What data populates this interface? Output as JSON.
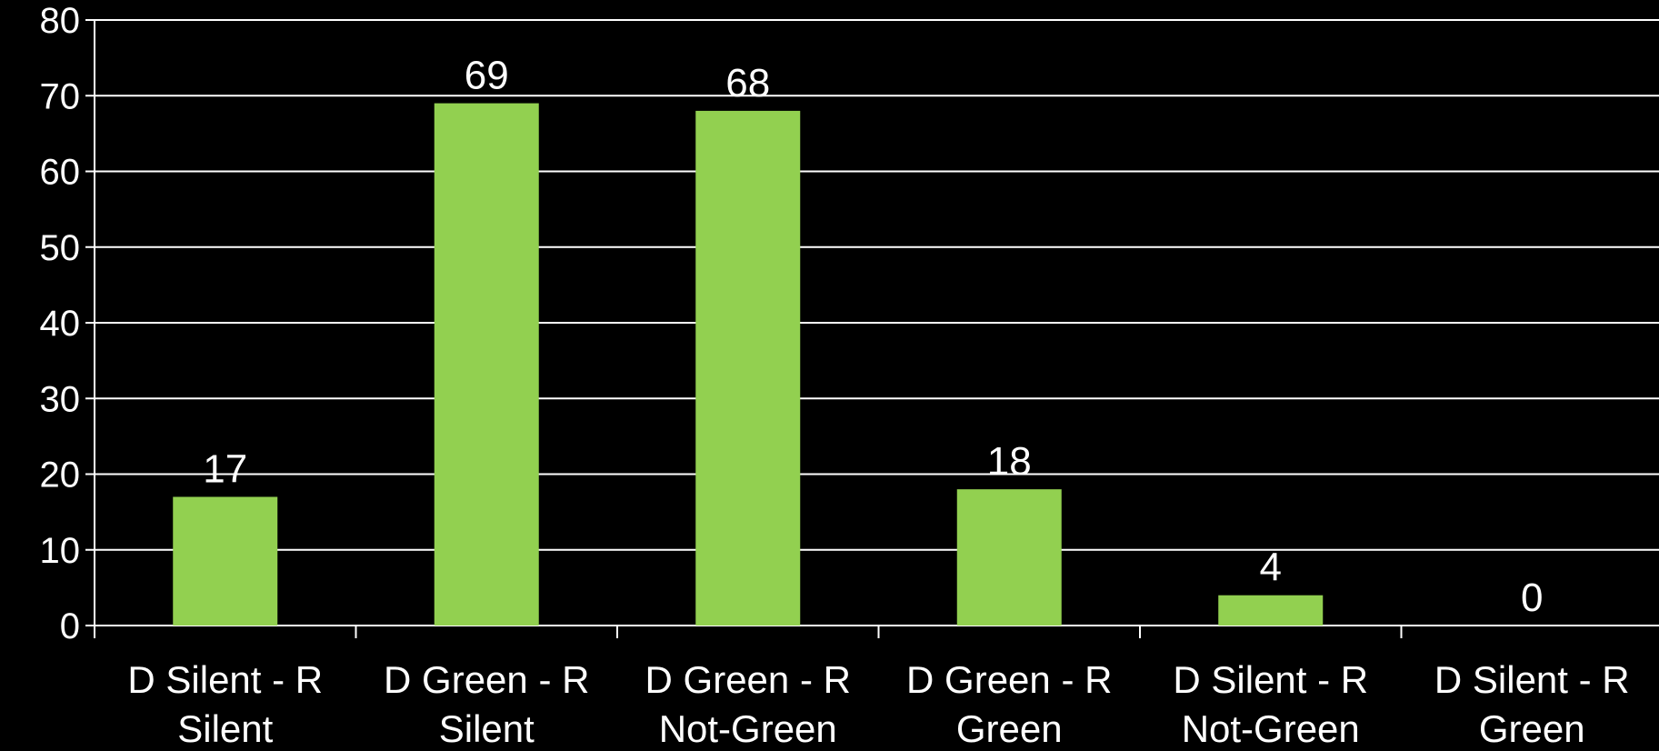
{
  "chart_data": {
    "type": "bar",
    "title": "",
    "xlabel": "",
    "ylabel": "",
    "categories": [
      [
        "D Silent - R",
        "Silent"
      ],
      [
        "D Green - R",
        "Silent"
      ],
      [
        "D Green - R",
        "Not-Green"
      ],
      [
        "D Green - R",
        "Green"
      ],
      [
        "D Silent - R",
        "Not-Green"
      ],
      [
        "D Silent - R",
        "Green"
      ]
    ],
    "values": [
      17,
      69,
      68,
      18,
      4,
      0
    ],
    "data_labels": [
      "17",
      "69",
      "68",
      "18",
      "4",
      "0"
    ],
    "ylim": [
      0,
      80
    ],
    "yticks": [
      "0",
      "10",
      "20",
      "30",
      "40",
      "50",
      "60",
      "70",
      "80"
    ],
    "grid": true,
    "legend": "none",
    "colors": {
      "background": "#000000",
      "bar": "#92d050",
      "grid": "#ffffff",
      "text": "#ffffff"
    }
  }
}
